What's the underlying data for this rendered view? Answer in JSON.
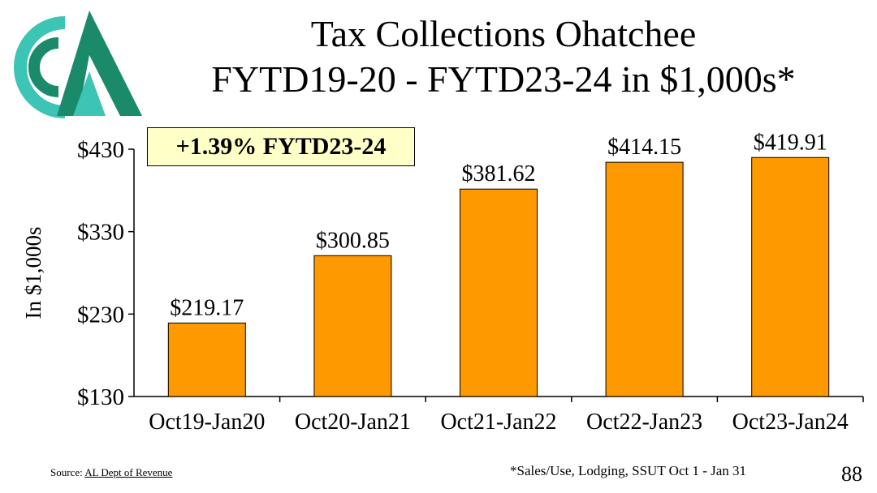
{
  "header": {
    "title_line1": "Tax Collections Ohatchee",
    "title_line2": "FYTD19-20 - FYTD23-24 in $1,000s*"
  },
  "callout": {
    "text": "+1.39% FYTD23-24"
  },
  "footer": {
    "source_label": "Source:",
    "source_link": "AL Dept of Revenue",
    "note": "*Sales/Use, Lodging, SSUT Oct 1 - Jan 31",
    "page_number": "88"
  },
  "colors": {
    "bar": "#ff9900",
    "logo_dark": "#1b8a6b",
    "logo_light": "#3cc4b4",
    "callout_bg": "#ffffc8"
  },
  "chart_data": {
    "type": "bar",
    "categories": [
      "Oct19-Jan20",
      "Oct20-Jan21",
      "Oct21-Jan22",
      "Oct22-Jan23",
      "Oct23-Jan24"
    ],
    "values": [
      219.17,
      300.85,
      381.62,
      414.15,
      419.91
    ],
    "data_labels": [
      "$219.17",
      "$300.85",
      "$381.62",
      "$414.15",
      "$419.91"
    ],
    "ylabel": "In $1,000s",
    "yticks": [
      130,
      230,
      330,
      430
    ],
    "ytick_labels": [
      "$130",
      "$230",
      "$330",
      "$430"
    ],
    "ylim": [
      130,
      430
    ],
    "grid": false,
    "legend": "none"
  }
}
